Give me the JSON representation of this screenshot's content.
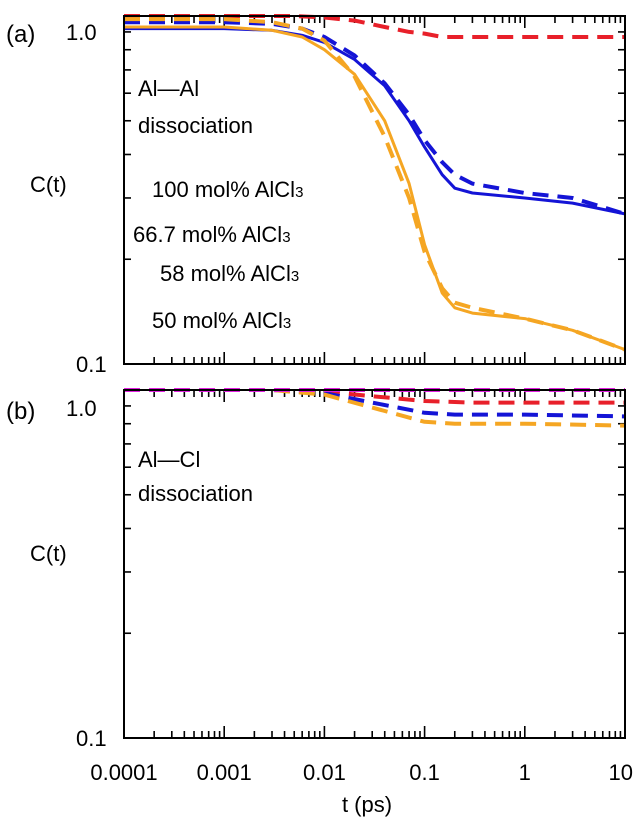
{
  "figure": {
    "xlabel": "t (ps)"
  },
  "chart_data": [
    {
      "panel": "(a)",
      "type": "line",
      "annotation": [
        "Al—Al",
        "dissociation"
      ],
      "xlabel": "t (ps)",
      "ylabel": "C(t)",
      "xscale": "log",
      "yscale": "log",
      "xlim": [
        0.0001,
        10
      ],
      "ylim": [
        0.1,
        1.0
      ],
      "grid": false,
      "legend": "center-left",
      "yticks": [
        "0.1",
        "1.0"
      ],
      "legend_items": [
        {
          "name": "100 mol% AlCl",
          "sub": "3",
          "color": "#e8202a"
        },
        {
          "name": "66.7 mol% AlCl",
          "sub": "3",
          "color": "#1414d6"
        },
        {
          "name": "58 mol% AlCl",
          "sub": "3",
          "color": "#f5a623"
        },
        {
          "name": "50 mol% AlCl",
          "sub": "3",
          "color": "#e020e0"
        }
      ],
      "series": [
        {
          "name": "100 mol% AlCl3",
          "style": "dashed",
          "color": "#e8202a",
          "x": [
            0.0001,
            0.001,
            0.005,
            0.01,
            0.02,
            0.04,
            0.07,
            0.1,
            0.15,
            0.3,
            1,
            10
          ],
          "y": [
            1.0,
            1.0,
            1.0,
            0.99,
            0.97,
            0.93,
            0.9,
            0.89,
            0.87,
            0.87,
            0.87,
            0.87
          ]
        },
        {
          "name": "66.7 mol% AlCl3",
          "style": "solid",
          "color": "#1414d6",
          "x": [
            0.0001,
            0.001,
            0.003,
            0.006,
            0.01,
            0.02,
            0.04,
            0.07,
            0.1,
            0.15,
            0.2,
            0.3,
            1,
            3,
            10
          ],
          "y": [
            0.92,
            0.92,
            0.91,
            0.88,
            0.84,
            0.75,
            0.63,
            0.5,
            0.42,
            0.35,
            0.32,
            0.31,
            0.3,
            0.29,
            0.27
          ]
        },
        {
          "name": "66.7 mol% AlCl3",
          "style": "dashed",
          "color": "#1414d6",
          "x": [
            0.0001,
            0.001,
            0.003,
            0.006,
            0.01,
            0.02,
            0.04,
            0.07,
            0.1,
            0.15,
            0.2,
            0.3,
            1,
            3,
            10
          ],
          "y": [
            0.96,
            0.96,
            0.95,
            0.92,
            0.87,
            0.77,
            0.64,
            0.52,
            0.44,
            0.38,
            0.35,
            0.33,
            0.31,
            0.3,
            0.27
          ]
        },
        {
          "name": "58 mol% AlCl3",
          "style": "solid",
          "color": "#f5a623",
          "x": [
            0.0001,
            0.001,
            0.003,
            0.006,
            0.01,
            0.02,
            0.04,
            0.07,
            0.1,
            0.15,
            0.2,
            0.3,
            1,
            3,
            10
          ],
          "y": [
            0.93,
            0.93,
            0.91,
            0.87,
            0.8,
            0.68,
            0.5,
            0.33,
            0.22,
            0.16,
            0.145,
            0.14,
            0.135,
            0.125,
            0.11
          ]
        },
        {
          "name": "58 mol% AlCl3",
          "style": "dashed",
          "color": "#f5a623",
          "x": [
            0.0001,
            0.001,
            0.003,
            0.006,
            0.01,
            0.02,
            0.04,
            0.07,
            0.1,
            0.15,
            0.2,
            0.3,
            1,
            3,
            10
          ],
          "y": [
            0.98,
            0.98,
            0.96,
            0.92,
            0.85,
            0.67,
            0.45,
            0.3,
            0.21,
            0.165,
            0.15,
            0.145,
            0.135,
            0.125,
            0.11
          ]
        }
      ]
    },
    {
      "panel": "(b)",
      "type": "line",
      "annotation": [
        "Al—Cl",
        "dissociation"
      ],
      "xlabel": "t (ps)",
      "ylabel": "C(t)",
      "xscale": "log",
      "yscale": "log",
      "xlim": [
        0.0001,
        10
      ],
      "ylim": [
        0.1,
        1.0
      ],
      "grid": false,
      "xticks": [
        "0.0001",
        "0.001",
        "0.01",
        "0.1",
        "1",
        "10"
      ],
      "yticks": [
        "0.1",
        "1.0"
      ],
      "series": [
        {
          "name": "100 mol% AlCl3",
          "style": "dashed",
          "color": "#e8202a",
          "x": [
            0.0001,
            0.005,
            0.01,
            0.03,
            0.1,
            0.3,
            1,
            10
          ],
          "y": [
            1.0,
            1.0,
            0.99,
            0.96,
            0.93,
            0.92,
            0.92,
            0.92
          ]
        },
        {
          "name": "66.7 mol% AlCl3",
          "style": "dashed",
          "color": "#1414d6",
          "x": [
            0.0001,
            0.003,
            0.01,
            0.03,
            0.1,
            0.2,
            0.5,
            1,
            10
          ],
          "y": [
            1.0,
            1.0,
            0.98,
            0.92,
            0.86,
            0.85,
            0.85,
            0.85,
            0.84
          ]
        },
        {
          "name": "58 mol% AlCl3",
          "style": "dashed",
          "color": "#f5a623",
          "x": [
            0.0001,
            0.003,
            0.01,
            0.03,
            0.1,
            0.2,
            0.5,
            1,
            10
          ],
          "y": [
            1.0,
            1.0,
            0.97,
            0.89,
            0.81,
            0.8,
            0.8,
            0.8,
            0.79
          ]
        },
        {
          "name": "50 mol% AlCl3",
          "style": "dashed",
          "color": "#e020e0",
          "x": [
            0.0001,
            0.01,
            0.1,
            1,
            10
          ],
          "y": [
            1.0,
            1.0,
            1.0,
            1.0,
            1.0
          ]
        }
      ]
    }
  ]
}
